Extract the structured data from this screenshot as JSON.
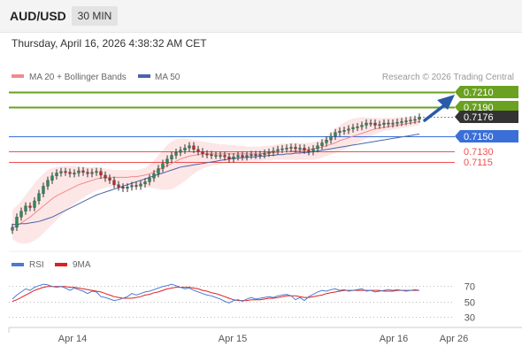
{
  "header": {
    "symbol": "AUD/USD",
    "timeframe": "30 MIN"
  },
  "datetime": "Thursday, April 16, 2026 4:38:32 AM CET",
  "legend": {
    "ma20": "MA 20 + Bollinger Bands",
    "ma50": "MA 50",
    "rsi": "RSI",
    "ma9": "9MA"
  },
  "credit": "Research © 2026 Trading Central",
  "colors": {
    "bull": "#2e8b57",
    "bear": "#c62828",
    "bb_fill": "#fde2e2",
    "ma20": "#f08a8a",
    "ma50": "#4a64a8",
    "resistance": "#6aa121",
    "pivot": "#3a6fd8",
    "support": "#f05050",
    "last": "#333333",
    "rsi": "#4a7bd0",
    "rsi_ma": "#e02020",
    "arrow": "#2a5aa8"
  },
  "levels": [
    {
      "value": 0.721,
      "label": "0.7210",
      "kind": "resistance"
    },
    {
      "value": 0.719,
      "label": "0.7190",
      "kind": "resistance"
    },
    {
      "value": 0.7176,
      "label": "0.7176",
      "kind": "last"
    },
    {
      "value": 0.715,
      "label": "0.7150",
      "kind": "pivot"
    },
    {
      "value": 0.713,
      "label": "0.7130",
      "kind": "support"
    },
    {
      "value": 0.7115,
      "label": "0.7115",
      "kind": "support"
    }
  ],
  "chart_data": {
    "type": "candlestick",
    "x_ticks": [
      "Apr 14",
      "Apr 15",
      "Apr 16",
      "Apr 26"
    ],
    "ylim": [
      0.7015,
      0.7215
    ],
    "close": [
      0.7026,
      0.704,
      0.7048,
      0.7055,
      0.7053,
      0.7062,
      0.7072,
      0.7082,
      0.709,
      0.7096,
      0.71,
      0.7102,
      0.7101,
      0.7099,
      0.71,
      0.7103,
      0.7101,
      0.7099,
      0.7101,
      0.7102,
      0.7097,
      0.7093,
      0.709,
      0.7084,
      0.7081,
      0.7079,
      0.7081,
      0.7083,
      0.7082,
      0.7085,
      0.7088,
      0.7093,
      0.7099,
      0.7106,
      0.7113,
      0.7119,
      0.7124,
      0.7128,
      0.7131,
      0.7134,
      0.7137,
      0.7132,
      0.7129,
      0.7126,
      0.7125,
      0.7124,
      0.7124,
      0.7124,
      0.7122,
      0.7119,
      0.7122,
      0.7124,
      0.7122,
      0.7124,
      0.7125,
      0.7124,
      0.7125,
      0.7127,
      0.7128,
      0.713,
      0.7132,
      0.7133,
      0.7134,
      0.7135,
      0.7133,
      0.7134,
      0.7131,
      0.7129,
      0.7133,
      0.7137,
      0.7141,
      0.7145,
      0.715,
      0.7155,
      0.7157,
      0.7158,
      0.716,
      0.7162,
      0.7163,
      0.7165,
      0.7168,
      0.7168,
      0.7165,
      0.7166,
      0.7168,
      0.7167,
      0.7168,
      0.7169,
      0.717,
      0.7171,
      0.7172,
      0.7173,
      0.7176
    ],
    "ma20": [
      0.7025,
      0.7028,
      0.7032,
      0.7036,
      0.704,
      0.7045,
      0.705,
      0.7055,
      0.706,
      0.7065,
      0.7069,
      0.7072,
      0.7075,
      0.7078,
      0.7081,
      0.7084,
      0.7086,
      0.7088,
      0.709,
      0.7092,
      0.7093,
      0.7094,
      0.7094,
      0.7094,
      0.7094,
      0.7094,
      0.7094,
      0.7095,
      0.7095,
      0.7096,
      0.7097,
      0.7099,
      0.7101,
      0.7104,
      0.7107,
      0.711,
      0.7113,
      0.7116,
      0.7119,
      0.7121,
      0.7123,
      0.7124,
      0.7125,
      0.7126,
      0.7126,
      0.7126,
      0.7126,
      0.7126,
      0.7126,
      0.7126,
      0.7126,
      0.7126,
      0.7126,
      0.7126,
      0.7126,
      0.7126,
      0.7126,
      0.7127,
      0.7127,
      0.7128,
      0.7128,
      0.7129,
      0.7129,
      0.713,
      0.713,
      0.7131,
      0.7131,
      0.7132,
      0.7133,
      0.7134,
      0.7135,
      0.7137,
      0.7139,
      0.7141,
      0.7144,
      0.7146,
      0.7148,
      0.715,
      0.7152,
      0.7154,
      0.7156,
      0.7158,
      0.716,
      0.7161,
      0.7162,
      0.7163,
      0.7164,
      0.7165,
      0.7166,
      0.7167,
      0.7168,
      0.7169,
      0.717
    ],
    "bb_upper": [
      0.705,
      0.7055,
      0.7062,
      0.707,
      0.7078,
      0.7086,
      0.7093,
      0.7099,
      0.7104,
      0.7107,
      0.7108,
      0.7109,
      0.711,
      0.711,
      0.711,
      0.7109,
      0.7108,
      0.7108,
      0.7108,
      0.7108,
      0.7107,
      0.7106,
      0.7105,
      0.7104,
      0.7104,
      0.7104,
      0.7104,
      0.7104,
      0.7104,
      0.7105,
      0.7107,
      0.7111,
      0.7117,
      0.7124,
      0.7131,
      0.7138,
      0.7143,
      0.7146,
      0.7147,
      0.7147,
      0.7146,
      0.7145,
      0.7144,
      0.7143,
      0.7142,
      0.7141,
      0.714,
      0.7139,
      0.7139,
      0.7138,
      0.7138,
      0.7137,
      0.7137,
      0.7136,
      0.7136,
      0.7136,
      0.7136,
      0.7137,
      0.7137,
      0.7138,
      0.7139,
      0.714,
      0.714,
      0.7141,
      0.7141,
      0.7141,
      0.7141,
      0.7141,
      0.7142,
      0.7143,
      0.7146,
      0.715,
      0.7155,
      0.716,
      0.7165,
      0.7169,
      0.7172,
      0.7174,
      0.7175,
      0.7176,
      0.7176,
      0.7175,
      0.7175,
      0.7175,
      0.7175,
      0.7175,
      0.7175,
      0.7176,
      0.7176,
      0.7176,
      0.7177,
      0.7177,
      0.7177
    ],
    "bb_lower": [
      0.701,
      0.7006,
      0.7004,
      0.7004,
      0.7005,
      0.7008,
      0.7012,
      0.7018,
      0.7024,
      0.703,
      0.7036,
      0.7042,
      0.7048,
      0.7053,
      0.7058,
      0.7062,
      0.7066,
      0.707,
      0.7073,
      0.7076,
      0.7078,
      0.708,
      0.7081,
      0.7082,
      0.7082,
      0.7082,
      0.7082,
      0.7082,
      0.7082,
      0.7082,
      0.7081,
      0.708,
      0.7079,
      0.7078,
      0.7077,
      0.7077,
      0.7078,
      0.7081,
      0.7085,
      0.7089,
      0.7094,
      0.7099,
      0.7103,
      0.7106,
      0.7108,
      0.711,
      0.7111,
      0.7112,
      0.7113,
      0.7113,
      0.7114,
      0.7114,
      0.7115,
      0.7115,
      0.7116,
      0.7116,
      0.7116,
      0.7117,
      0.7117,
      0.7118,
      0.7118,
      0.7118,
      0.7118,
      0.7118,
      0.7118,
      0.7118,
      0.7118,
      0.7118,
      0.7118,
      0.7119,
      0.7121,
      0.7123,
      0.7125,
      0.7127,
      0.7129,
      0.7132,
      0.7135,
      0.7138,
      0.7141,
      0.7144,
      0.7147,
      0.715,
      0.7153,
      0.7155,
      0.7157,
      0.7158,
      0.7159,
      0.716,
      0.7161,
      0.7162,
      0.7163,
      0.7164,
      0.7165
    ],
    "ma50": [
      0.703,
      0.703,
      0.7031,
      0.7031,
      0.7032,
      0.7033,
      0.7034,
      0.7036,
      0.7038,
      0.704,
      0.7043,
      0.7046,
      0.7049,
      0.7052,
      0.7055,
      0.7058,
      0.7061,
      0.7064,
      0.7067,
      0.707,
      0.7072,
      0.7074,
      0.7076,
      0.7078,
      0.708,
      0.7082,
      0.7084,
      0.7086,
      0.7088,
      0.709,
      0.7092,
      0.7094,
      0.7096,
      0.7098,
      0.71,
      0.7102,
      0.7104,
      0.7106,
      0.7108,
      0.7109,
      0.711,
      0.7111,
      0.7112,
      0.7113,
      0.7114,
      0.7115,
      0.7116,
      0.7117,
      0.7118,
      0.7119,
      0.712,
      0.712,
      0.7121,
      0.7121,
      0.7122,
      0.7122,
      0.7123,
      0.7123,
      0.7124,
      0.7124,
      0.7125,
      0.7125,
      0.7126,
      0.7126,
      0.7127,
      0.7127,
      0.7128,
      0.7128,
      0.7129,
      0.713,
      0.7131,
      0.7132,
      0.7133,
      0.7134,
      0.7135,
      0.7136,
      0.7137,
      0.7138,
      0.7139,
      0.714,
      0.7141,
      0.7142,
      0.7143,
      0.7144,
      0.7145,
      0.7146,
      0.7147,
      0.7148,
      0.7149,
      0.715,
      0.7151,
      0.7152,
      0.7153
    ],
    "rsi": {
      "ticks": [
        70,
        50,
        30
      ],
      "ylim": [
        20,
        80
      ],
      "values": [
        53,
        58,
        62,
        66,
        64,
        68,
        70,
        72,
        71,
        69,
        68,
        69,
        67,
        64,
        67,
        65,
        63,
        60,
        63,
        62,
        56,
        55,
        53,
        51,
        52,
        54,
        56,
        60,
        58,
        60,
        62,
        63,
        65,
        67,
        69,
        70,
        72,
        70,
        68,
        66,
        67,
        64,
        62,
        60,
        58,
        57,
        55,
        53,
        50,
        48,
        51,
        52,
        50,
        53,
        55,
        53,
        54,
        55,
        56,
        55,
        57,
        58,
        59,
        57,
        52,
        55,
        51,
        56,
        59,
        62,
        64,
        63,
        65,
        66,
        64,
        65,
        63,
        64,
        65,
        66,
        63,
        64,
        62,
        63,
        64,
        65,
        64,
        65,
        64,
        63,
        64,
        65,
        64
      ],
      "ma": [
        50,
        52,
        55,
        58,
        61,
        64,
        66,
        68,
        69,
        69,
        69,
        69,
        69,
        68,
        68,
        67,
        66,
        65,
        64,
        63,
        62,
        60,
        58,
        56,
        55,
        54,
        54,
        54,
        55,
        56,
        58,
        59,
        61,
        62,
        64,
        66,
        67,
        68,
        68,
        68,
        68,
        67,
        66,
        64,
        63,
        61,
        60,
        58,
        56,
        54,
        52,
        51,
        51,
        51,
        52,
        52,
        52,
        53,
        54,
        54,
        55,
        56,
        57,
        57,
        57,
        56,
        55,
        55,
        56,
        57,
        58,
        60,
        61,
        62,
        63,
        64,
        64,
        64,
        64,
        64,
        64,
        64,
        64,
        64,
        63,
        63,
        63,
        64,
        64,
        64,
        64,
        64,
        64
      ]
    }
  }
}
